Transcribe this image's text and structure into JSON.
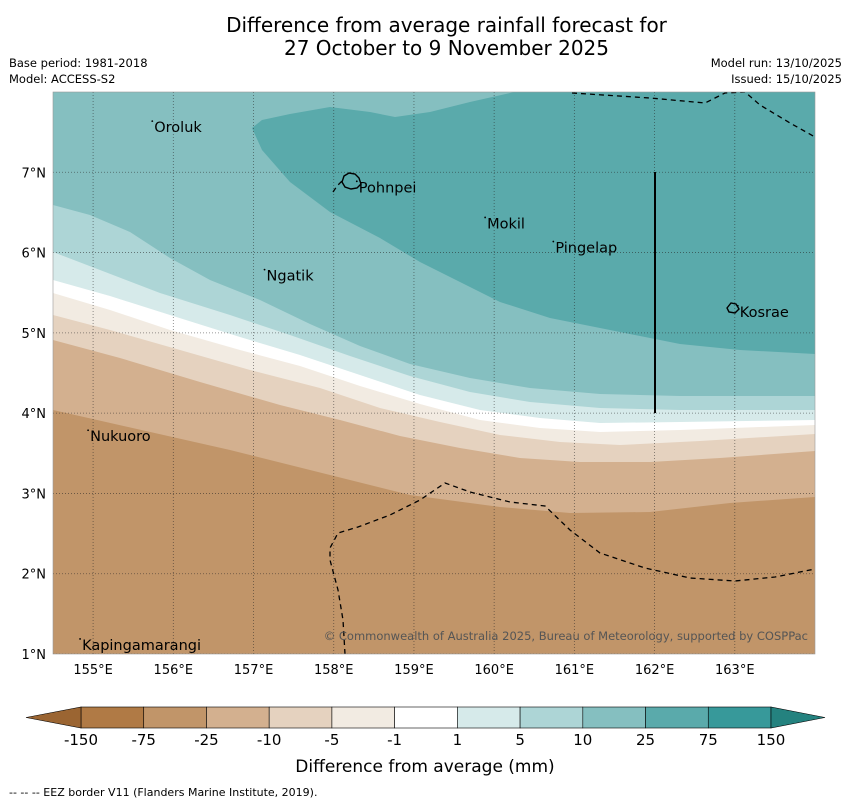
{
  "header": {
    "title_line1": "Difference from average rainfall forecast for",
    "title_line2": "27 October to 9 November 2025",
    "base_period": "Base period: 1981-2018",
    "model": "Model: ACCESS-S2",
    "model_run": "Model run: 13/10/2025",
    "issued": "Issued: 15/10/2025"
  },
  "map": {
    "lon_ticks": [
      "155°E",
      "156°E",
      "157°E",
      "158°E",
      "159°E",
      "160°E",
      "161°E",
      "162°E",
      "163°E"
    ],
    "lat_ticks": [
      "7°N",
      "6°N",
      "5°N",
      "4°N",
      "3°N",
      "2°N",
      "1°N"
    ],
    "lon_values": [
      155,
      156,
      157,
      158,
      159,
      160,
      161,
      162,
      163
    ],
    "lat_values": [
      7,
      6,
      5,
      4,
      3,
      2,
      1
    ],
    "lon_range": [
      154.5,
      164.0
    ],
    "lat_range": [
      1.0,
      8.0
    ],
    "places": [
      {
        "name": "Oroluk",
        "lon": 155.75,
        "lat": 7.6
      },
      {
        "name": "Pohnpei",
        "lon": 158.3,
        "lat": 6.85
      },
      {
        "name": "Mokil",
        "lon": 159.9,
        "lat": 6.4
      },
      {
        "name": "Pingelap",
        "lon": 160.75,
        "lat": 6.1
      },
      {
        "name": "Ngatik",
        "lon": 157.15,
        "lat": 5.75
      },
      {
        "name": "Kosrae",
        "lon": 163.05,
        "lat": 5.3
      },
      {
        "name": "Nukuoro",
        "lon": 154.95,
        "lat": 3.75
      },
      {
        "name": "Kapingamarangi",
        "lon": 154.85,
        "lat": 1.15
      }
    ],
    "copyright": "© Commonwealth of Australia 2025, Bureau of Meteorology, supported by COSPPac"
  },
  "colorbar": {
    "labels": [
      "-150",
      "-75",
      "-25",
      "-10",
      "-5",
      "-1",
      "1",
      "5",
      "10",
      "25",
      "75",
      "150"
    ],
    "colors": [
      "#b07a45",
      "#c19569",
      "#d3b08f",
      "#e5d2bf",
      "#f2ebe2",
      "#ffffff",
      "#d6eaea",
      "#add5d6",
      "#85bfc0",
      "#5aaaab",
      "#37999a"
    ],
    "title": "Difference from average (mm)"
  },
  "footer": {
    "eez_note": "--  --  -- EEZ border V11 (Flanders Marine Institute, 2019)."
  }
}
